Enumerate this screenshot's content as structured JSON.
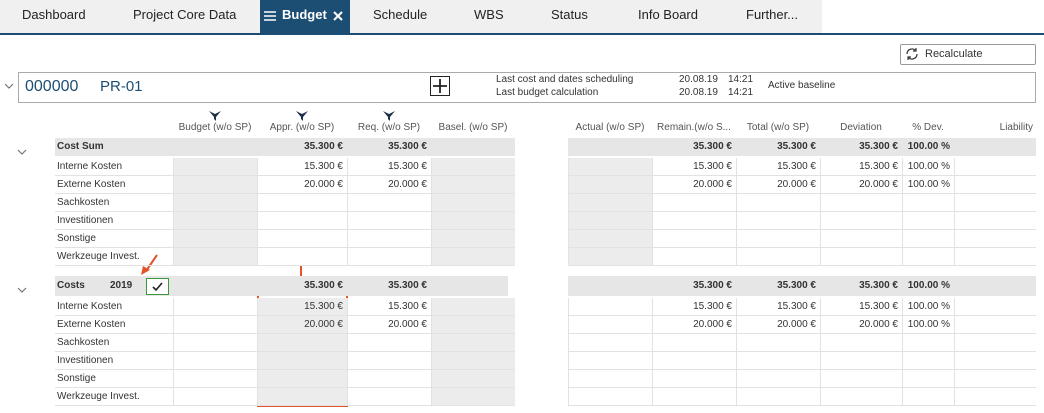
{
  "tabs": [
    "Dashboard",
    "Project Core Data",
    "Budget",
    "Schedule",
    "WBS",
    "Status",
    "Info Board",
    "Further..."
  ],
  "recalculate_button": "Recalculate",
  "project": {
    "number": "000000",
    "name": "PR-01",
    "info_labels": [
      "Last cost and dates scheduling",
      "Last budget calculation"
    ],
    "info_dates": [
      "20.08.19",
      "20.08.19"
    ],
    "info_times": [
      "14:21",
      "14:21"
    ],
    "baseline": "Active baseline"
  },
  "columns": [
    "Budget (w/o SP)",
    "Appr. (w/o SP)",
    "Req. (w/o SP)",
    "Basel. (w/o SP)",
    "Actual (w/o SP)",
    "Remain.(w/o S...",
    "Total (w/o SP)",
    "Deviation",
    "% Dev.",
    "Liability"
  ],
  "sections": [
    {
      "title": "Cost Sum",
      "totals": [
        null,
        "35.300 €",
        "35.300 €",
        null,
        null,
        "35.300 €",
        "35.300 €",
        "35.300 €",
        "100.00 %",
        null
      ],
      "rows": [
        {
          "label": "Interne Kosten",
          "cells": [
            null,
            "15.300 €",
            "15.300 €",
            null,
            null,
            "15.300 €",
            "15.300 €",
            "15.300 €",
            "100.00 %",
            null
          ]
        },
        {
          "label": "Externe Kosten",
          "cells": [
            null,
            "20.000 €",
            "20.000 €",
            null,
            null,
            "20.000 €",
            "20.000 €",
            "20.000 €",
            "100.00 %",
            null
          ]
        },
        {
          "label": "Sachkosten",
          "cells": [
            null,
            null,
            null,
            null,
            null,
            null,
            null,
            null,
            null,
            null
          ]
        },
        {
          "label": "Investitionen",
          "cells": [
            null,
            null,
            null,
            null,
            null,
            null,
            null,
            null,
            null,
            null
          ]
        },
        {
          "label": "Sonstige",
          "cells": [
            null,
            null,
            null,
            null,
            null,
            null,
            null,
            null,
            null,
            null
          ]
        },
        {
          "label": "Werkzeuge Invest.",
          "cells": [
            null,
            null,
            null,
            null,
            null,
            null,
            null,
            null,
            null,
            null
          ]
        }
      ]
    },
    {
      "title": "Costs",
      "year": "2019",
      "totals": [
        null,
        "35.300 €",
        "35.300 €",
        null,
        null,
        "35.300 €",
        "35.300 €",
        "35.300 €",
        "100.00 %",
        null
      ],
      "rows": [
        {
          "label": "Interne Kosten",
          "cells": [
            null,
            "15.300 €",
            "15.300 €",
            null,
            null,
            "15.300 €",
            "15.300 €",
            "15.300 €",
            "100.00 %",
            null
          ]
        },
        {
          "label": "Externe Kosten",
          "cells": [
            null,
            "20.000 €",
            "20.000 €",
            null,
            null,
            "20.000 €",
            "20.000 €",
            "20.000 €",
            "100.00 %",
            null
          ]
        },
        {
          "label": "Sachkosten",
          "cells": [
            null,
            null,
            null,
            null,
            null,
            null,
            null,
            null,
            null,
            null
          ]
        },
        {
          "label": "Investitionen",
          "cells": [
            null,
            null,
            null,
            null,
            null,
            null,
            null,
            null,
            null,
            null
          ]
        },
        {
          "label": "Sonstige",
          "cells": [
            null,
            null,
            null,
            null,
            null,
            null,
            null,
            null,
            null,
            null
          ]
        },
        {
          "label": "Werkzeuge Invest.",
          "cells": [
            null,
            null,
            null,
            null,
            null,
            null,
            null,
            null,
            null,
            null
          ]
        }
      ]
    }
  ]
}
